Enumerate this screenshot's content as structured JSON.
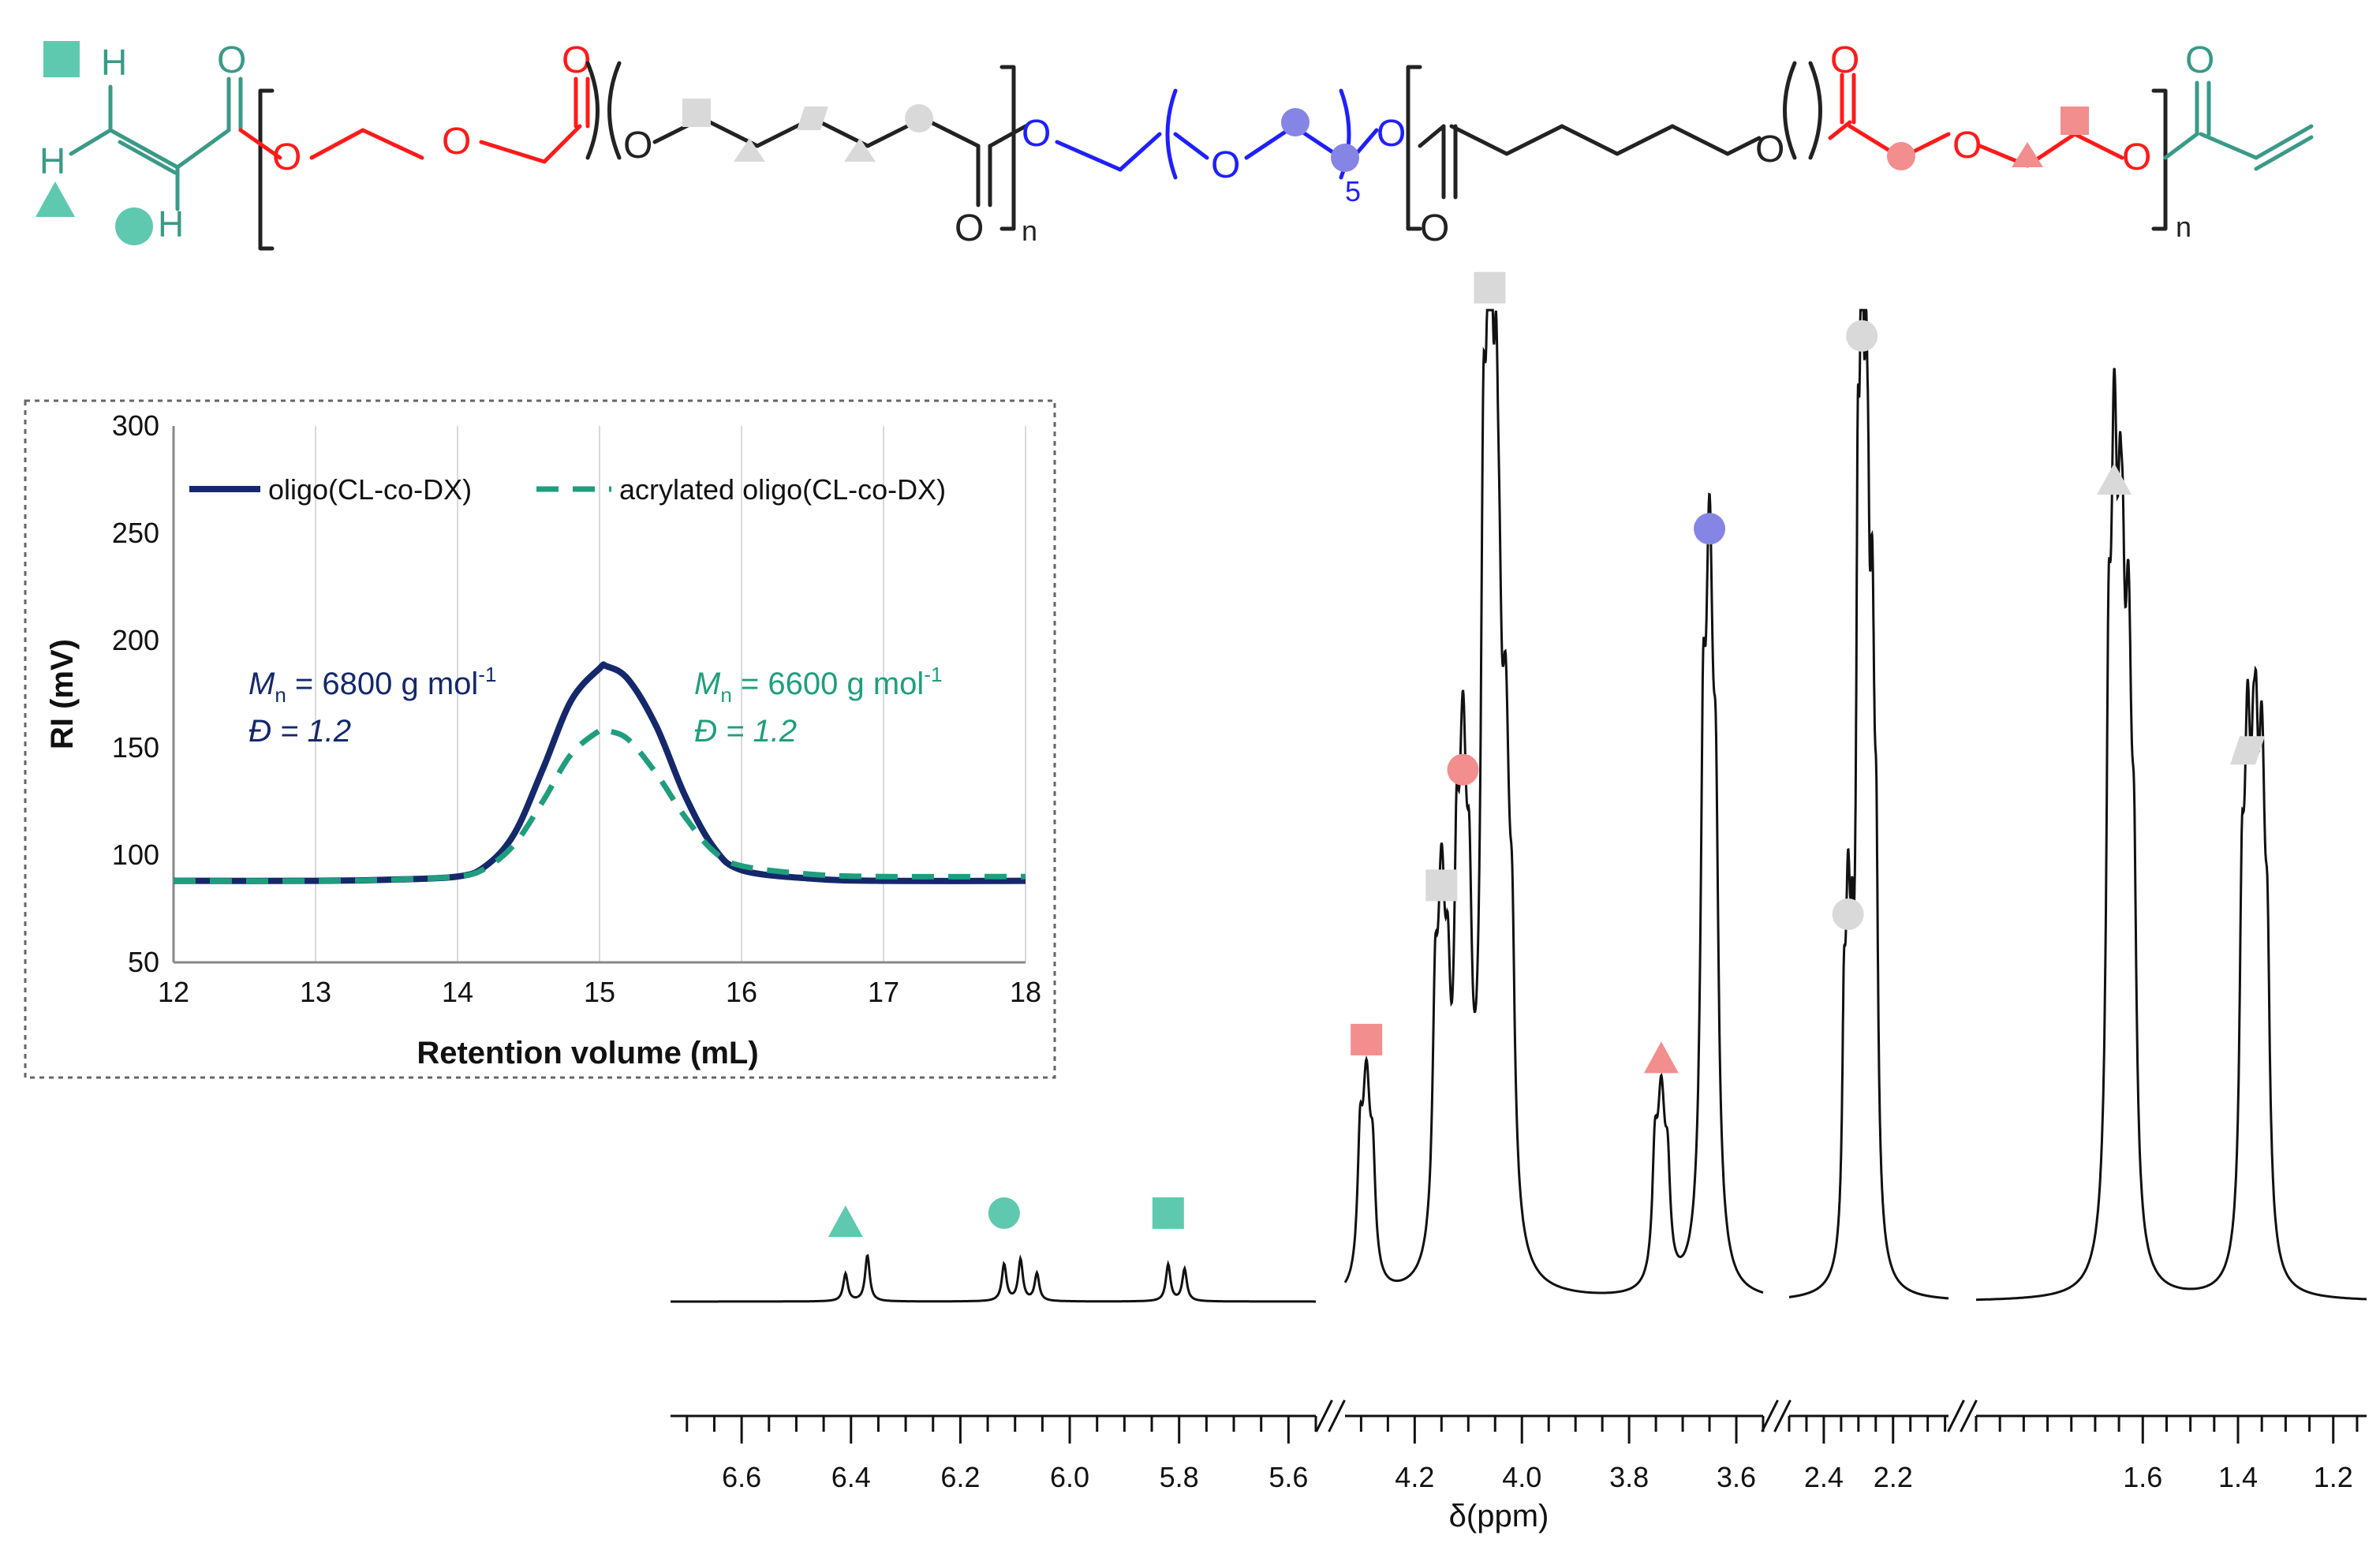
{
  "structure": {
    "atom_O": "O",
    "atom_H": "H",
    "subscript_n": "n",
    "subscript_5": "5"
  },
  "colors": {
    "teal": "#5fc9b0",
    "teal_dark": "#3a9a87",
    "red": "#ff1a1a",
    "blue": "#1f1fff",
    "grey_marker": "#d9d9d9",
    "red_marker": "#f28e8e",
    "blue_marker": "#8585e6",
    "navy": "#14286b",
    "green_dash": "#1f9e7e"
  },
  "chart_data": [
    {
      "type": "line",
      "title": "",
      "xlabel": "Retention volume (mL)",
      "ylabel": "RI (mV)",
      "xlim": [
        12,
        18
      ],
      "ylim": [
        50,
        300
      ],
      "x_ticks": [
        "12",
        "13",
        "14",
        "15",
        "16",
        "17",
        "18"
      ],
      "y_ticks": [
        "50",
        "100",
        "150",
        "200",
        "250",
        "300"
      ],
      "grid": "vertical",
      "legend_position": "top",
      "series": [
        {
          "name": "oligo(CL-co-DX)",
          "color": "#14286b",
          "style": "solid",
          "x": [
            12,
            13,
            13.5,
            14,
            14.2,
            14.4,
            14.6,
            14.8,
            15.0,
            15.05,
            15.2,
            15.4,
            15.6,
            15.8,
            16.0,
            16.5,
            17,
            18
          ],
          "y": [
            88,
            88,
            88.5,
            90,
            95,
            110,
            140,
            172,
            187,
            188,
            182,
            160,
            128,
            104,
            93,
            89,
            88,
            88
          ]
        },
        {
          "name": "acrylated oligo(CL-co-DX)",
          "color": "#1f9e7e",
          "style": "dashed",
          "x": [
            12,
            13,
            13.5,
            14,
            14.2,
            14.4,
            14.6,
            14.8,
            15.0,
            15.05,
            15.2,
            15.4,
            15.6,
            15.8,
            16.0,
            16.5,
            17,
            18
          ],
          "y": [
            88,
            88,
            88.5,
            90,
            94,
            105,
            125,
            147,
            158,
            158,
            154,
            138,
            118,
            102,
            95,
            91,
            90,
            90
          ]
        }
      ],
      "annotations": [
        {
          "symbol": "M",
          "sub": "n",
          "rest": " = 6800 g mol",
          "sup": "-1",
          "dispersity": "Đ = 1.2",
          "color": "#14286b"
        },
        {
          "symbol": "M",
          "sub": "n",
          "rest": " = 6600 g mol",
          "sup": "-1",
          "dispersity": "Đ = 1.2",
          "color": "#1f9e7e"
        }
      ]
    },
    {
      "type": "line",
      "title": "",
      "xlabel": "δ(ppm)",
      "axis_segments": [
        {
          "range": [
            6.73,
            5.55
          ],
          "ticks": [
            "6.6",
            "6.4",
            "6.2",
            "6.0",
            "5.8",
            "5.6"
          ]
        },
        {
          "range": [
            4.33,
            3.55
          ],
          "ticks": [
            "4.2",
            "4.0",
            "3.8",
            "3.6"
          ]
        },
        {
          "range": [
            2.5,
            2.04
          ],
          "ticks": [
            "2.4",
            "2.2"
          ]
        },
        {
          "range": [
            1.95,
            1.13
          ],
          "ticks": [
            "1.6",
            "1.4",
            "1.2"
          ]
        }
      ],
      "peaks": [
        {
          "ppm": 6.41,
          "height": 0.03,
          "label": "triangle",
          "color": "#5fc9b0"
        },
        {
          "ppm": 6.37,
          "height": 0.05
        },
        {
          "ppm": 6.12,
          "height": 0.04,
          "label": "circle",
          "color": "#5fc9b0"
        },
        {
          "ppm": 6.09,
          "height": 0.045
        },
        {
          "ppm": 6.06,
          "height": 0.03
        },
        {
          "ppm": 5.82,
          "height": 0.04,
          "label": "square",
          "color": "#5fc9b0"
        },
        {
          "ppm": 5.79,
          "height": 0.035
        },
        {
          "ppm": 4.29,
          "height": 0.22,
          "label": "square",
          "color": "#f28e8e"
        },
        {
          "ppm": 4.15,
          "height": 0.38,
          "label": "square",
          "color": "#d9d9d9"
        },
        {
          "ppm": 4.11,
          "height": 0.5,
          "label": "circle",
          "color": "#f28e8e"
        },
        {
          "ppm": 4.06,
          "height": 1.0,
          "label": "square",
          "color": "#d9d9d9"
        },
        {
          "ppm": 4.03,
          "height": 0.48
        },
        {
          "ppm": 3.74,
          "height": 0.2,
          "label": "triangle",
          "color": "#f28e8e"
        },
        {
          "ppm": 3.65,
          "height": 0.75,
          "label": "circle",
          "color": "#8585e6"
        },
        {
          "ppm": 2.33,
          "height": 0.35,
          "label": "circle",
          "color": "#d9d9d9"
        },
        {
          "ppm": 2.29,
          "height": 0.95,
          "label": "circle",
          "color": "#d9d9d9"
        },
        {
          "ppm": 2.26,
          "height": 0.6
        },
        {
          "ppm": 1.66,
          "height": 0.8,
          "label": "triangle",
          "color": "#d9d9d9"
        },
        {
          "ppm": 1.63,
          "height": 0.6
        },
        {
          "ppm": 1.38,
          "height": 0.52,
          "label": "parallelogram",
          "color": "#d9d9d9"
        },
        {
          "ppm": 1.35,
          "height": 0.5
        }
      ]
    }
  ]
}
